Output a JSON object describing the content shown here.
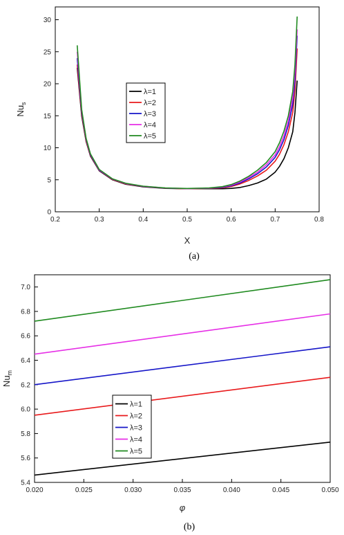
{
  "chart_data": [
    {
      "type": "line",
      "panel_label": "(a)",
      "xlabel": "X",
      "ylabel": "Nu",
      "ylabel_sub": "s",
      "xlim": [
        0.2,
        0.8
      ],
      "ylim": [
        0,
        32
      ],
      "xticks": [
        0.2,
        0.3,
        0.4,
        0.5,
        0.6,
        0.7,
        0.8
      ],
      "yticks": [
        0,
        5,
        10,
        15,
        20,
        25,
        30
      ],
      "xtick_labels": [
        "0.2",
        "0.3",
        "0.4",
        "0.5",
        "0.6",
        "0.7",
        "0.8"
      ],
      "ytick_labels": [
        "0",
        "5",
        "10",
        "15",
        "20",
        "25",
        "30"
      ],
      "legend_position": "center-left",
      "x": [
        0.25,
        0.26,
        0.27,
        0.28,
        0.3,
        0.33,
        0.36,
        0.4,
        0.45,
        0.5,
        0.55,
        0.58,
        0.6,
        0.62,
        0.64,
        0.66,
        0.68,
        0.7,
        0.71,
        0.72,
        0.73,
        0.74,
        0.745,
        0.75
      ],
      "series": [
        {
          "name": "λ=1",
          "color": "#000000",
          "values": [
            22.5,
            15.0,
            11.0,
            8.7,
            6.4,
            5.0,
            4.3,
            3.9,
            3.65,
            3.6,
            3.6,
            3.6,
            3.65,
            3.8,
            4.1,
            4.5,
            5.1,
            6.2,
            7.1,
            8.3,
            10.0,
            12.5,
            15.5,
            20.5
          ]
        },
        {
          "name": "λ=2",
          "color": "#e8191b",
          "values": [
            23.0,
            15.3,
            11.1,
            8.8,
            6.45,
            5.05,
            4.35,
            3.95,
            3.68,
            3.6,
            3.65,
            3.75,
            3.95,
            4.35,
            4.9,
            5.6,
            6.5,
            7.9,
            9.0,
            10.5,
            12.5,
            15.5,
            19.0,
            25.5
          ]
        },
        {
          "name": "λ=3",
          "color": "#1515c8",
          "values": [
            24.0,
            15.6,
            11.3,
            8.9,
            6.5,
            5.1,
            4.4,
            3.97,
            3.7,
            3.62,
            3.68,
            3.82,
            4.05,
            4.5,
            5.15,
            5.95,
            7.0,
            8.5,
            9.7,
            11.3,
            13.5,
            16.8,
            20.5,
            27.5
          ]
        },
        {
          "name": "λ=4",
          "color": "#e62ee6",
          "values": [
            25.0,
            15.8,
            11.4,
            9.0,
            6.55,
            5.12,
            4.42,
            3.98,
            3.71,
            3.63,
            3.7,
            3.88,
            4.15,
            4.65,
            5.35,
            6.2,
            7.35,
            8.9,
            10.2,
            11.9,
            14.2,
            17.8,
            21.8,
            28.5
          ]
        },
        {
          "name": "λ=5",
          "color": "#1f8a1f",
          "values": [
            26.0,
            16.0,
            11.5,
            9.05,
            6.6,
            5.15,
            4.45,
            4.0,
            3.72,
            3.64,
            3.72,
            3.92,
            4.25,
            4.8,
            5.55,
            6.5,
            7.7,
            9.4,
            10.8,
            12.6,
            15.0,
            18.8,
            23.0,
            30.5
          ]
        }
      ]
    },
    {
      "type": "line",
      "panel_label": "(b)",
      "xlabel": "φ",
      "ylabel": "Nu",
      "ylabel_sub": "m",
      "xlim": [
        0.02,
        0.05
      ],
      "ylim": [
        5.4,
        7.1
      ],
      "xticks": [
        0.02,
        0.025,
        0.03,
        0.035,
        0.04,
        0.045,
        0.05
      ],
      "yticks": [
        5.4,
        5.6,
        5.8,
        6.0,
        6.2,
        6.4,
        6.6,
        6.8,
        7.0
      ],
      "xtick_labels": [
        "0.020",
        "0.025",
        "0.030",
        "0.035",
        "0.040",
        "0.045",
        "0.050"
      ],
      "ytick_labels": [
        "5.4",
        "5.6",
        "5.8",
        "6.0",
        "6.2",
        "6.4",
        "6.6",
        "6.8",
        "7.0"
      ],
      "legend_position": "lower-left",
      "x": [
        0.02,
        0.05
      ],
      "series": [
        {
          "name": "λ=1",
          "color": "#000000",
          "values": [
            5.46,
            5.73
          ]
        },
        {
          "name": "λ=2",
          "color": "#e8191b",
          "values": [
            5.95,
            6.26
          ]
        },
        {
          "name": "λ=3",
          "color": "#1515c8",
          "values": [
            6.2,
            6.51
          ]
        },
        {
          "name": "λ=4",
          "color": "#e62ee6",
          "values": [
            6.45,
            6.78
          ]
        },
        {
          "name": "λ=5",
          "color": "#1f8a1f",
          "values": [
            6.72,
            7.06
          ]
        }
      ]
    }
  ]
}
